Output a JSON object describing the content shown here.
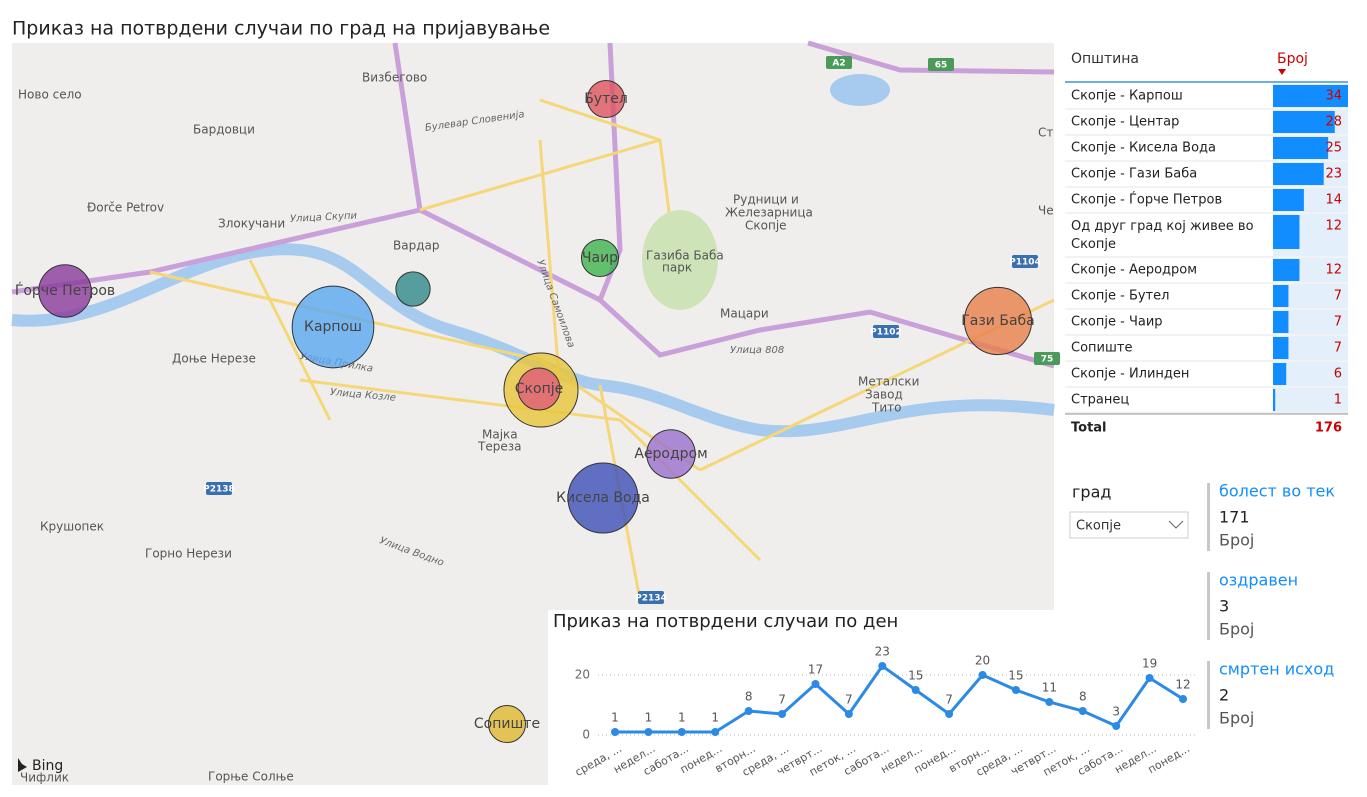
{
  "map": {
    "title": "Приказ на потврдени случаи по град на пријавување",
    "place_labels": [
      "Ново село",
      "Визбегово",
      "Бардовци",
      "Булевар Словенија",
      "Đorče Petrov",
      "Злокучани",
      "Улица Скупи",
      "Вардар",
      "Рудници и",
      "Железарница",
      "Скопје",
      "Газиба Баба",
      "парк",
      "Мацари",
      "Улица 808",
      "Доње Нерезе",
      "Улица Прилка",
      "Улица Козле",
      "Мајка",
      "Тереза",
      "Металски",
      "Завод",
      "Тито",
      "Крушопек",
      "Горно Нерези",
      "Улица Водно",
      "Чифлик",
      "Горње Солње",
      "Ст",
      "Че",
      "Улица Самоилова",
      "A2",
      "65",
      "P1104",
      "P1102",
      "75",
      "P2138",
      "P2134"
    ],
    "bubbles": [
      {
        "label": "Бутел",
        "value": 7,
        "color": "#e0545f"
      },
      {
        "label": "Чаир",
        "value": 7,
        "color": "#3fb34f"
      },
      {
        "value": 6,
        "color": "#2e8a8a"
      },
      {
        "label": "Карпош",
        "value": 34,
        "color": "#5aa8f0"
      },
      {
        "label": "Ѓорче Петров",
        "value": 14,
        "color": "#8b3a9c"
      },
      {
        "value": 28,
        "color": "#e8c53a"
      },
      {
        "label": "Скопје",
        "value": 9,
        "color": "#e05a7a"
      },
      {
        "label": "Аеродром",
        "value": 12,
        "color": "#9b6fd0"
      },
      {
        "label": "Кисела Вода",
        "value": 25,
        "color": "#3c4fb8"
      },
      {
        "label": "Гази Баба",
        "value": 23,
        "color": "#e8804a"
      },
      {
        "label": "Сопиште",
        "value": 7,
        "color": "#e0b830"
      }
    ],
    "attribution": "Bing"
  },
  "table": {
    "headers": [
      "Општина",
      "Број"
    ],
    "rows": [
      [
        "Скопје - Карпош",
        34
      ],
      [
        "Скопје - Центар",
        28
      ],
      [
        "Скопје - Кисела Вода",
        25
      ],
      [
        "Скопје - Гази Баба",
        23
      ],
      [
        "Скопје - Ѓорче Петров",
        14
      ],
      [
        "Од друг град кој живее во Скопје",
        12
      ],
      [
        "Скопје - Аеродром",
        12
      ],
      [
        "Скопје - Бутел",
        7
      ],
      [
        "Скопје - Чаир",
        7
      ],
      [
        "Сопиште",
        7
      ],
      [
        "Скопје - Илинден",
        6
      ],
      [
        "Странец",
        1
      ]
    ],
    "total_label": "Total",
    "total": 176,
    "bar_color": "#118dff"
  },
  "slicer": {
    "title": "град",
    "value": "Скопје"
  },
  "cards": [
    {
      "title": "болест во тек",
      "value": 171,
      "label": "Број"
    },
    {
      "title": "оздравен",
      "value": 3,
      "label": "Број"
    },
    {
      "title": "смртен исход",
      "value": 2,
      "label": "Број"
    }
  ],
  "chart_data": {
    "type": "line",
    "title": "Приказ на потврдени случаи по ден",
    "categories": [
      "среда, ...",
      "недел...",
      "сабота...",
      "понед...",
      "вторн...",
      "среда, ...",
      "четврт...",
      "петок, ...",
      "сабота...",
      "недел...",
      "понед...",
      "вторн...",
      "среда, ...",
      "четврт...",
      "петок, ...",
      "сабота...",
      "недел...",
      "понед..."
    ],
    "values": [
      1,
      1,
      1,
      1,
      8,
      7,
      17,
      7,
      23,
      15,
      7,
      20,
      15,
      11,
      8,
      3,
      19,
      12
    ],
    "color": "#2b8ae6",
    "ylim": [
      0,
      25
    ],
    "yticks": [
      0,
      20
    ],
    "grid": true
  }
}
